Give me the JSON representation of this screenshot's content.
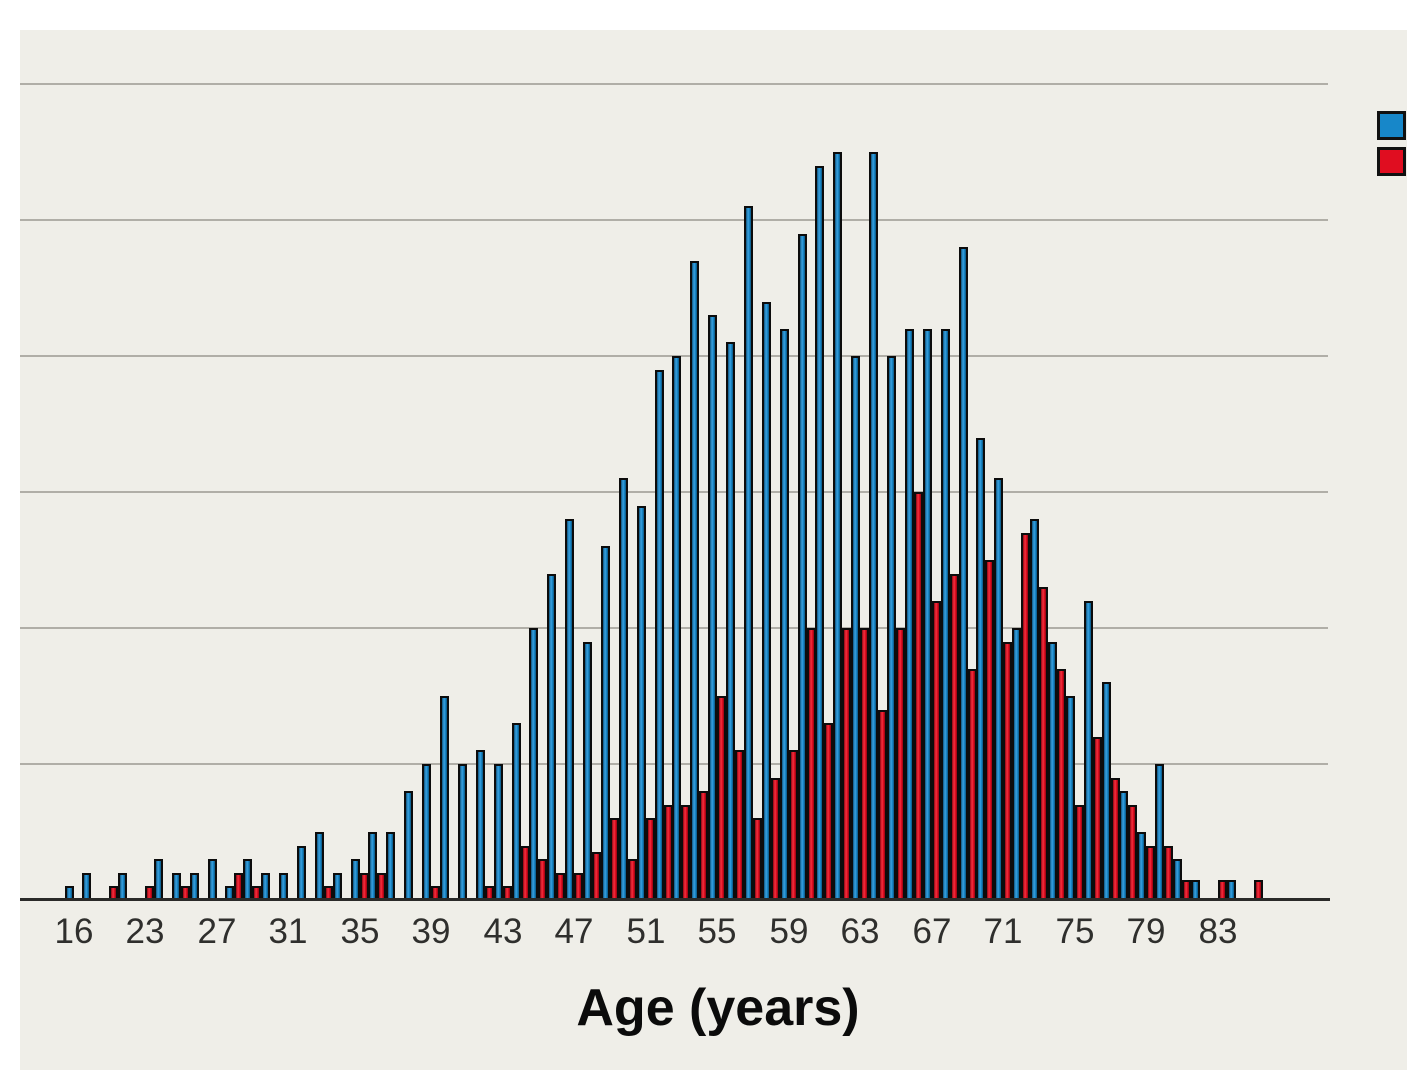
{
  "chart_data": {
    "type": "bar",
    "title": "",
    "xlabel": "Age (years)",
    "ylabel": "",
    "x_axis_note": "categorical age slots; tick labels shown every 4th slot",
    "x_tick_labels": [
      "16",
      "23",
      "27",
      "31",
      "35",
      "39",
      "43",
      "47",
      "51",
      "55",
      "59",
      "63",
      "67",
      "71",
      "75",
      "79",
      "83"
    ],
    "x_tick_slot_indices": [
      0,
      4,
      8,
      12,
      16,
      20,
      24,
      28,
      32,
      36,
      40,
      44,
      48,
      52,
      56,
      60,
      64
    ],
    "grid_values": [
      10,
      20,
      30,
      40,
      50,
      60
    ],
    "ylim": [
      0,
      63
    ],
    "grid_on": true,
    "categories_count": 67,
    "series": [
      {
        "name": "blue-series",
        "color": "#1787c9",
        "values": [
          1,
          2,
          0,
          2,
          0,
          3,
          2,
          2,
          3,
          1,
          3,
          2,
          2,
          4,
          5,
          2,
          3,
          5,
          5,
          8,
          10,
          15,
          10,
          11,
          10,
          13,
          20,
          24,
          28,
          19,
          26,
          31,
          29,
          39,
          40,
          47,
          43,
          41,
          51,
          44,
          42,
          49,
          54,
          55,
          40,
          55,
          40,
          42,
          42,
          42,
          48,
          34,
          31,
          20,
          28,
          19,
          15,
          22,
          16,
          8,
          5,
          10,
          3,
          1.5,
          0,
          1.5,
          0
        ]
      },
      {
        "name": "red-series",
        "color": "#e00d20",
        "values": [
          0,
          0,
          1,
          0,
          1,
          0,
          1,
          0,
          0,
          2,
          1,
          0,
          0,
          0,
          1,
          0,
          2,
          2,
          0,
          0,
          1,
          0,
          0,
          1,
          1,
          4,
          3,
          2,
          2,
          3.5,
          6,
          3,
          6,
          7,
          7,
          8,
          15,
          11,
          6,
          9,
          11,
          20,
          13,
          20,
          20,
          14,
          20,
          30,
          22,
          24,
          17,
          25,
          19,
          27,
          23,
          17,
          7,
          12,
          9,
          7,
          4,
          4,
          1.5,
          0,
          1.5,
          0,
          1.5
        ]
      }
    ],
    "legend": {
      "position": "top-right",
      "note": "labels cropped outside image",
      "items": [
        {
          "swatch_color": "#1787c9",
          "label": ""
        },
        {
          "swatch_color": "#e00d20",
          "label": ""
        }
      ]
    }
  },
  "layout_colors": {
    "page_background": "#ffffff",
    "panel_background": "#efeee8",
    "gridline": "#b0aea7",
    "axis_line": "#2a2a28",
    "bar_outline": "#0c0c0c",
    "tick_text": "#2f2f2d",
    "title_text": "#0b0b0b"
  }
}
